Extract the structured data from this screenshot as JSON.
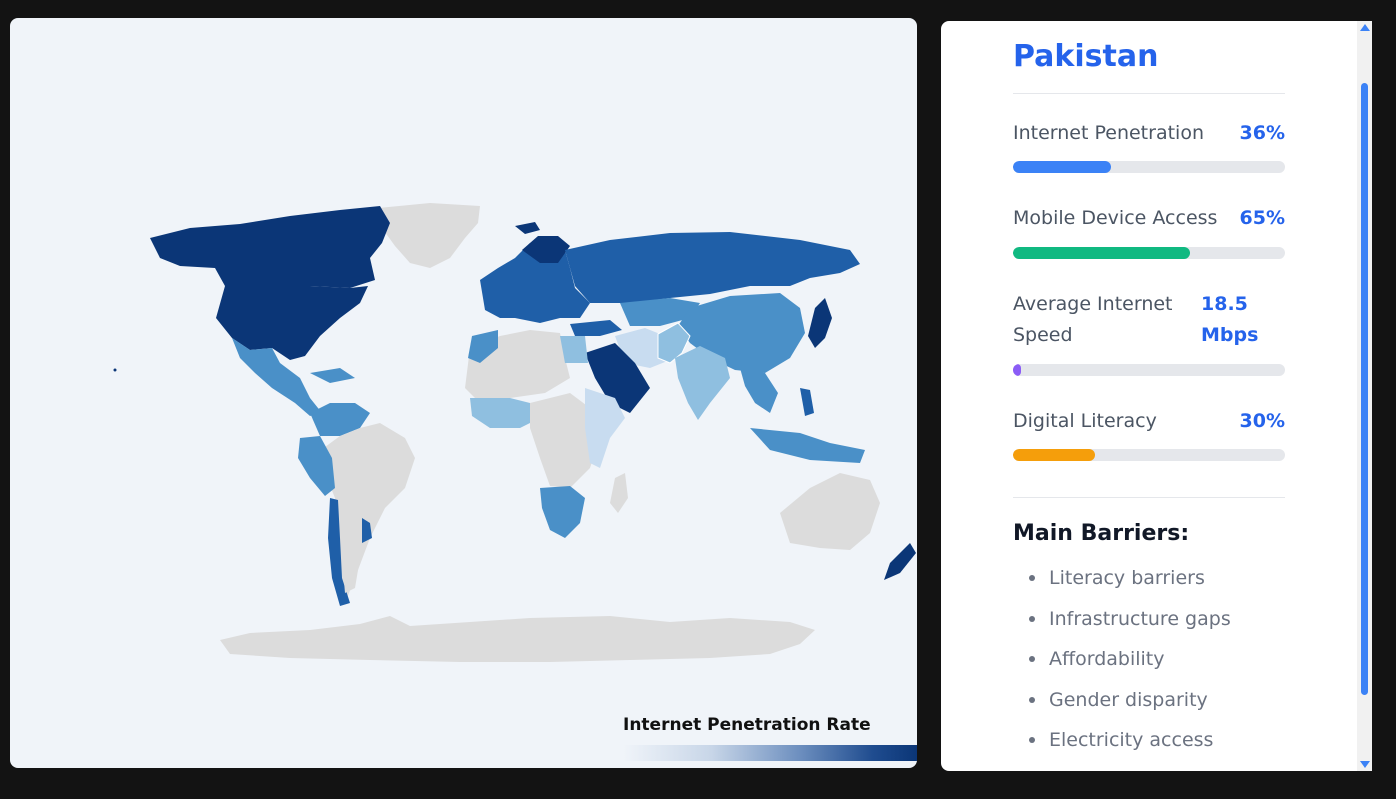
{
  "map": {
    "legend_title": "Internet Penetration Rate",
    "colors": {
      "no_data": "#dcdcdc",
      "very_low": "#c8dcf0",
      "low": "#8fbfe0",
      "mid": "#4a90c8",
      "high": "#1f5fa8",
      "very_high": "#0b3677"
    }
  },
  "panel": {
    "country": "Pakistan",
    "metrics": [
      {
        "label": "Internet Penetration",
        "value": "36%",
        "percent": 36,
        "color": "#3b82f6"
      },
      {
        "label": "Mobile Device Access",
        "value": "65%",
        "percent": 65,
        "color": "#10b981"
      },
      {
        "label_line1": "Average Internet",
        "label_line2": "Speed",
        "value_line1": "18.5",
        "value_line2": "Mbps",
        "percent": 3,
        "color": "#8b5cf6"
      },
      {
        "label": "Digital Literacy",
        "value": "30%",
        "percent": 30,
        "color": "#f59e0b"
      }
    ],
    "barriers_title": "Main Barriers:",
    "barriers": [
      "Literacy barriers",
      "Infrastructure gaps",
      "Affordability",
      "Gender disparity",
      "Electricity access"
    ]
  }
}
